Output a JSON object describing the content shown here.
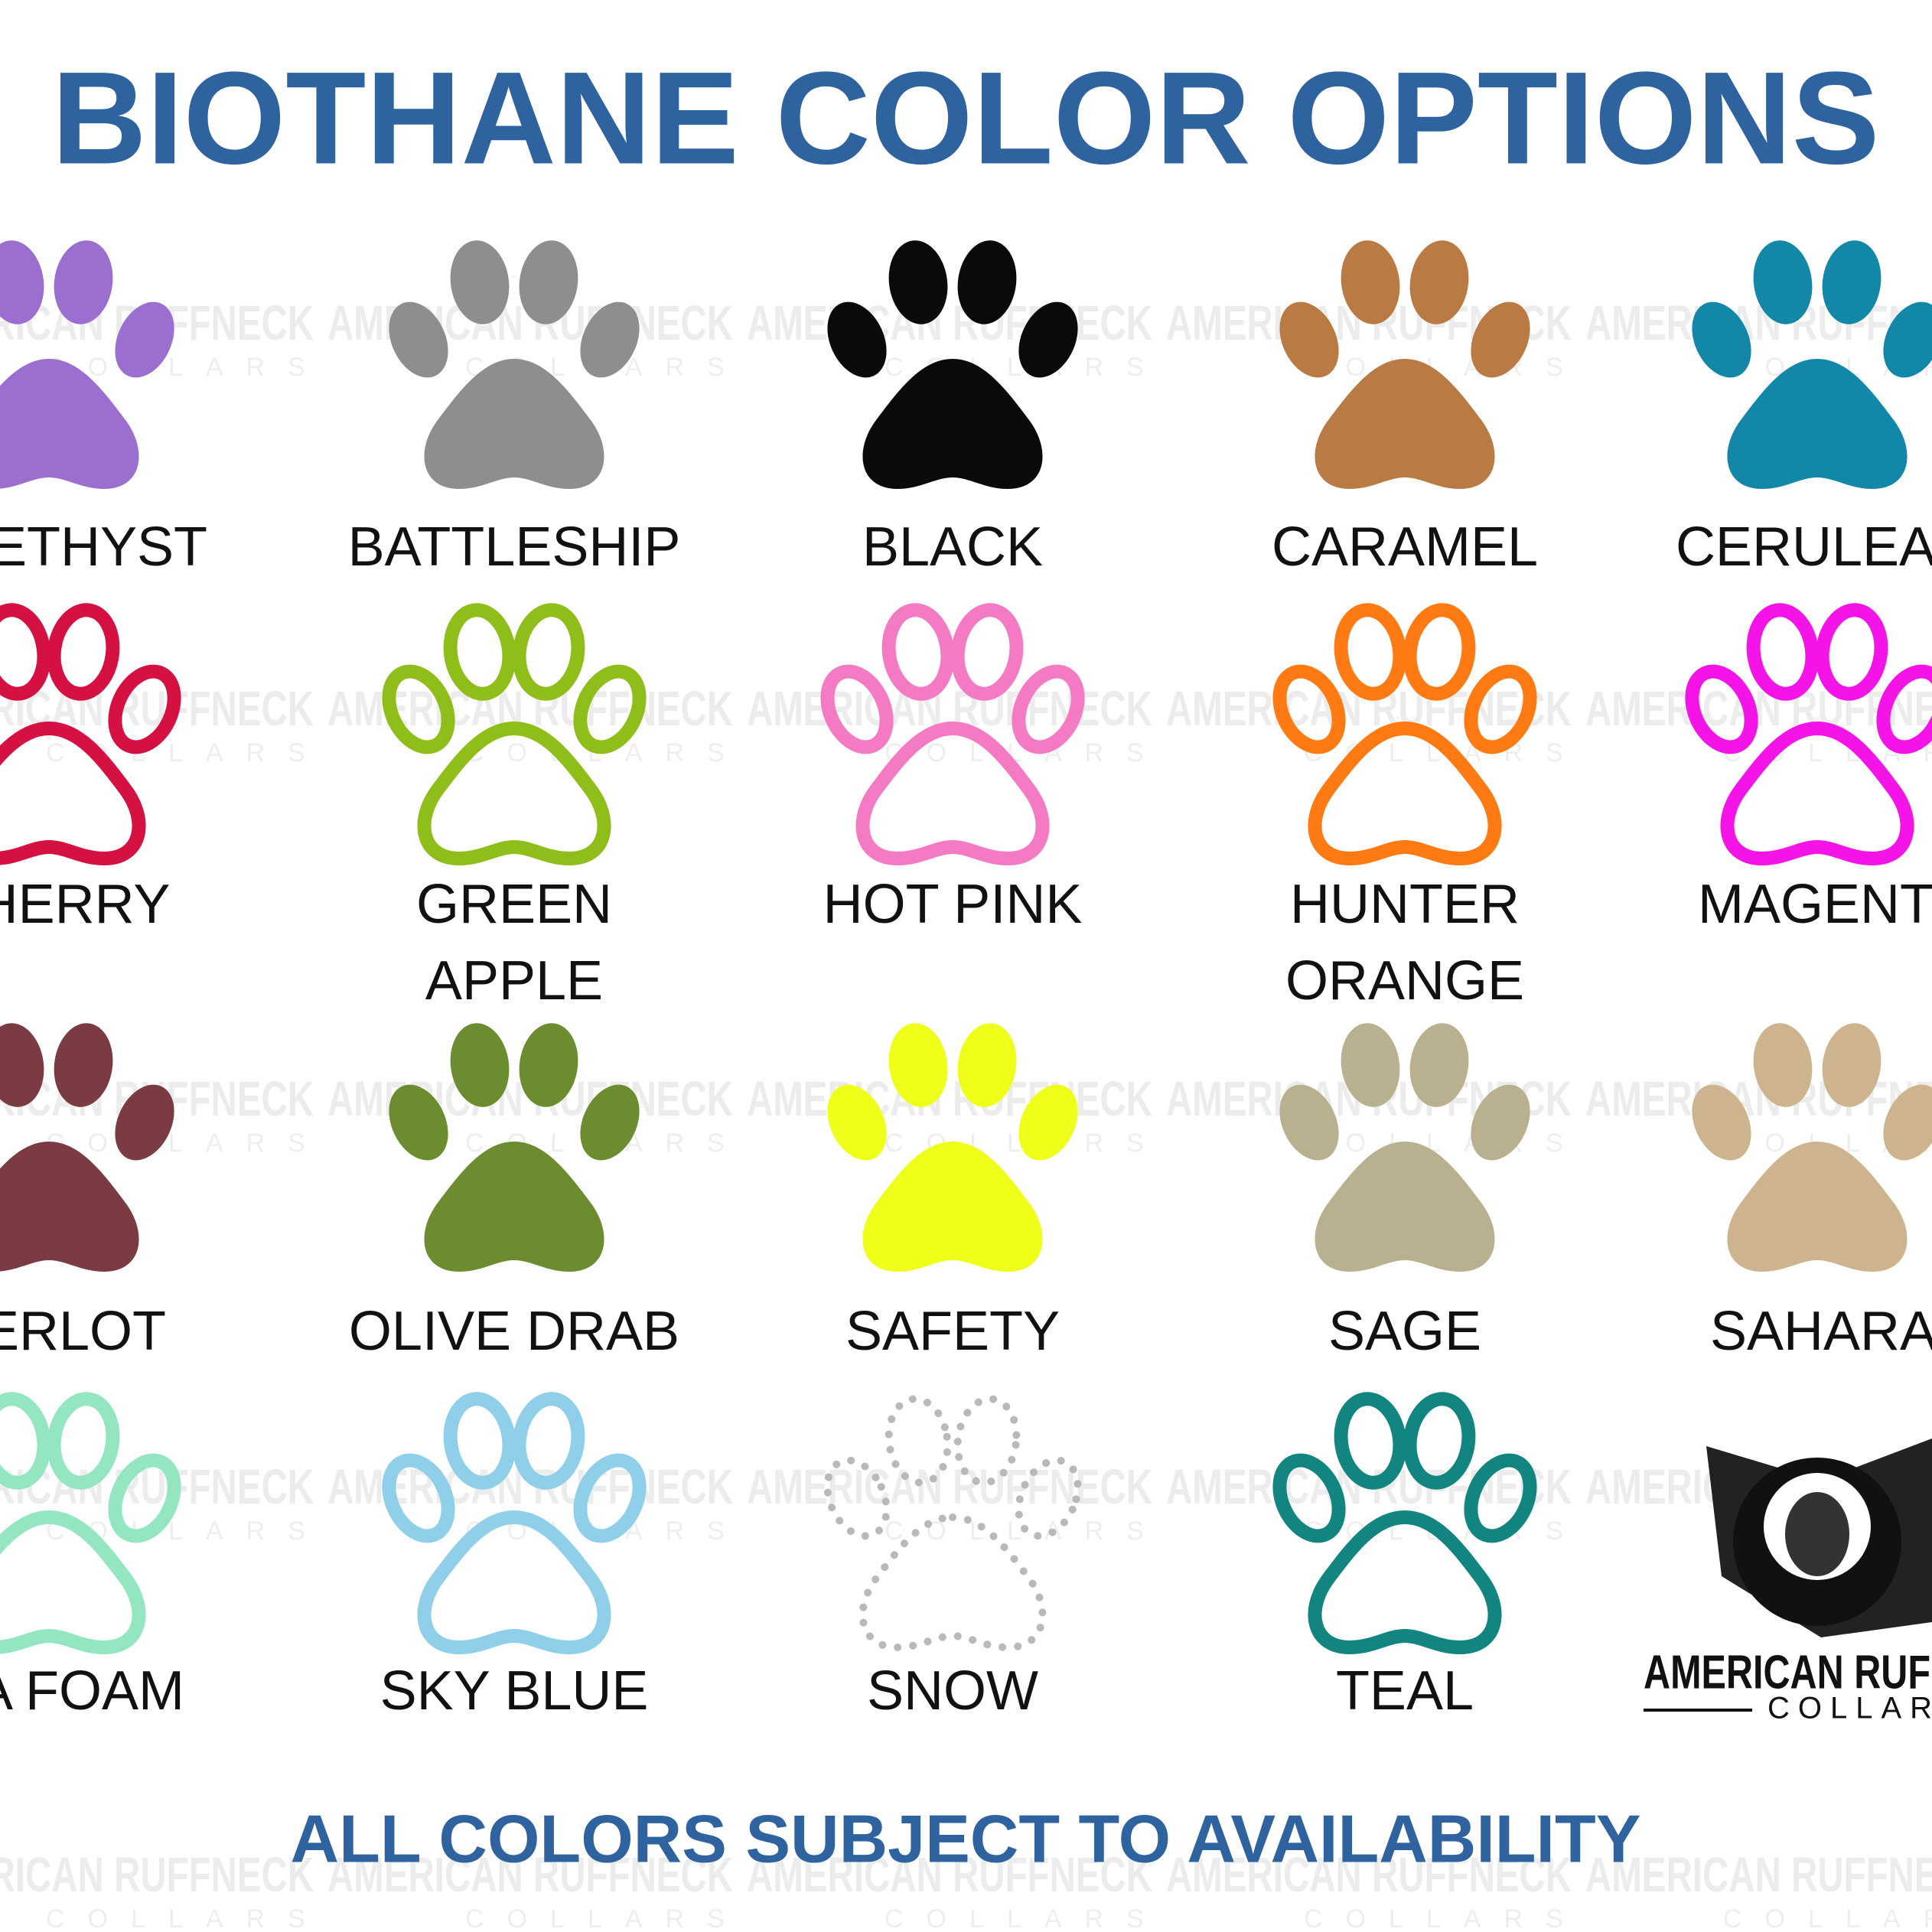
{
  "header": {
    "title": "BIOTHANE COLOR OPTIONS"
  },
  "watermark": {
    "brand": "AMERICAN RUFFNECK",
    "sub": "COLLARS"
  },
  "swatches": [
    {
      "label": [
        "ETHYST"
      ],
      "color": "#9b6fd0",
      "style": "filled"
    },
    {
      "label": [
        "BATTLESHIP"
      ],
      "color": "#8e8e8e",
      "style": "filled"
    },
    {
      "label": [
        "BLACK"
      ],
      "color": "#0a0a0a",
      "style": "filled"
    },
    {
      "label": [
        "CARAMEL"
      ],
      "color": "#b97b43",
      "style": "filled"
    },
    {
      "label": [
        "CERULEA"
      ],
      "color": "#1287a8",
      "style": "filled"
    },
    {
      "label": [
        "HERRY"
      ],
      "color": "#d41140",
      "style": "outline"
    },
    {
      "label": [
        "GREEN",
        "APPLE"
      ],
      "color": "#8fbd1a",
      "style": "outline"
    },
    {
      "label": [
        "HOT PINK"
      ],
      "color": "#f57ac4",
      "style": "outline"
    },
    {
      "label": [
        "HUNTER",
        "ORANGE"
      ],
      "color": "#ff7a12",
      "style": "outline"
    },
    {
      "label": [
        "MAGENT"
      ],
      "color": "#f514e8",
      "style": "outline"
    },
    {
      "label": [
        "ERLOT"
      ],
      "color": "#7a3b42",
      "style": "filled"
    },
    {
      "label": [
        "OLIVE DRAB"
      ],
      "color": "#6b8c2f",
      "style": "filled"
    },
    {
      "label": [
        "SAFETY"
      ],
      "color": "#eeff1a",
      "style": "filled"
    },
    {
      "label": [
        "SAGE"
      ],
      "color": "#b8b08f",
      "style": "filled"
    },
    {
      "label": [
        "SAHARA"
      ],
      "color": "#cdb38e",
      "style": "filled"
    },
    {
      "label": [
        "A FOAM"
      ],
      "color": "#93e6c0",
      "style": "outline"
    },
    {
      "label": [
        "SKY BLUE"
      ],
      "color": "#8fcfe9",
      "style": "outline"
    },
    {
      "label": [
        "SNOW"
      ],
      "color": "#b9b9b9",
      "style": "dotted"
    },
    {
      "label": [
        "TEAL"
      ],
      "color": "#138580",
      "style": "outline"
    }
  ],
  "logo": {
    "brand": "AMERICAN RUF",
    "sub": "COLLAR"
  },
  "footer": {
    "text": "ALL COLORS SUBJECT TO AVAILABILITY"
  }
}
